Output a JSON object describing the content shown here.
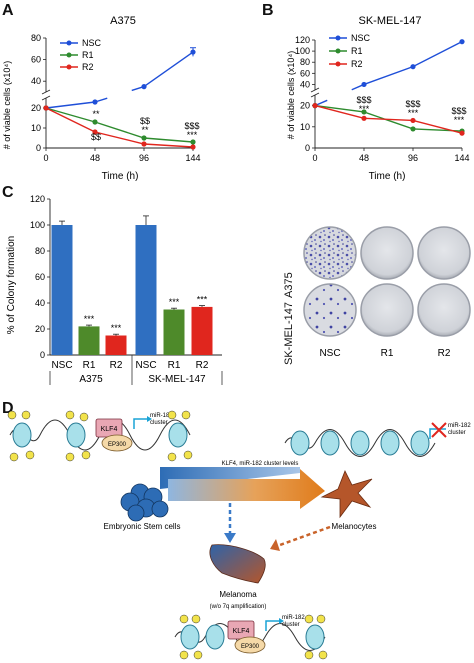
{
  "panels": {
    "A": {
      "letter": "A",
      "title": "A375",
      "xlabel": "Time (h)",
      "ylabel": "# of viable cells (x10⁴)",
      "x_ticks": [
        "0",
        "48",
        "96",
        "144"
      ],
      "y_ticks": [
        "0",
        "10",
        "20",
        "40",
        "60",
        "80"
      ],
      "legend": [
        "NSC",
        "R1",
        "R2"
      ],
      "annotations": {
        "r1_48": "**",
        "r2_48": "$$",
        "r1_96": "$$",
        "r2_96": "**",
        "r1_144": "$$$",
        "r2_144": "***"
      }
    },
    "B": {
      "letter": "B",
      "title": "SK-MEL-147",
      "xlabel": "Time (h)",
      "ylabel": "# of viable cells (x10⁴)",
      "x_ticks": [
        "0",
        "48",
        "96",
        "144"
      ],
      "y_ticks": [
        "0",
        "10",
        "20",
        "40",
        "60",
        "80",
        "100",
        "120"
      ],
      "legend": [
        "NSC",
        "R1",
        "R2"
      ],
      "annotations": {
        "s48": "$$$",
        "a48": "***",
        "s96": "$$$",
        "a96": "***",
        "s144": "$$$",
        "a144": "***"
      }
    },
    "C": {
      "letter": "C",
      "ylabel": "% of Colony formation",
      "y_ticks": [
        "0",
        "20",
        "40",
        "60",
        "80",
        "100",
        "120"
      ],
      "bar_labels": [
        "NSC",
        "R1",
        "R2",
        "NSC",
        "R1",
        "R2"
      ],
      "groups": [
        "A375",
        "SK-MEL-147"
      ],
      "stars": [
        "***",
        "***",
        "***",
        "***"
      ],
      "dish_rows": [
        "A375",
        "SK-MEL-147"
      ],
      "dish_cols": [
        "NSC",
        "R1",
        "R2"
      ]
    },
    "D": {
      "letter": "D",
      "klf4": "KLF4",
      "ep300": "EP300",
      "mir182": "miR-182\ncluster",
      "mir182_right": "miR-182\ncluster",
      "levels_text": "KLF4, miR-182 cluster levels",
      "esc": "Embryonic Stem cells",
      "melanocytes": "Melanocytes",
      "melanoma": "Melanoma",
      "melanoma_sub": "(w/o 7q amplification)",
      "methyl": "Ac"
    }
  },
  "colors": {
    "nsc": "#1f4fd8",
    "r1": "#2e8b2e",
    "r2": "#e0261e",
    "bar_blue": "#2f6fc1",
    "bar_green": "#4e8a2a",
    "bar_red": "#e0261e"
  },
  "chart_data": [
    {
      "type": "line",
      "title": "A375",
      "xlabel": "Time (h)",
      "ylabel": "# of viable cells (x10⁴)",
      "x": [
        0,
        48,
        96,
        144
      ],
      "ylim": [
        0,
        80
      ],
      "series": [
        {
          "name": "NSC",
          "values": [
            20,
            23,
            35,
            67
          ]
        },
        {
          "name": "R1",
          "values": [
            20,
            13,
            5,
            3
          ]
        },
        {
          "name": "R2",
          "values": [
            20,
            8,
            2,
            0.5
          ]
        }
      ],
      "legend": "top-left",
      "y_axis_break": [
        25,
        30
      ]
    },
    {
      "type": "line",
      "title": "SK-MEL-147",
      "xlabel": "Time (h)",
      "ylabel": "# of viable cells (x10⁴)",
      "x": [
        0,
        48,
        96,
        144
      ],
      "ylim": [
        0,
        120
      ],
      "series": [
        {
          "name": "NSC",
          "values": [
            20,
            40,
            72,
            117
          ]
        },
        {
          "name": "R1",
          "values": [
            20,
            17,
            9,
            8
          ]
        },
        {
          "name": "R2",
          "values": [
            20,
            14,
            13,
            7
          ]
        }
      ],
      "legend": "top-left",
      "y_axis_break": [
        25,
        30
      ]
    },
    {
      "type": "bar",
      "ylabel": "% of Colony formation",
      "categories": [
        "NSC",
        "R1",
        "R2",
        "NSC",
        "R1",
        "R2"
      ],
      "groups": [
        "A375",
        "SK-MEL-147"
      ],
      "values": [
        100,
        22,
        15,
        100,
        35,
        37
      ],
      "errors": [
        3,
        1,
        1,
        7,
        1,
        1
      ],
      "ylim": [
        0,
        120
      ]
    }
  ]
}
